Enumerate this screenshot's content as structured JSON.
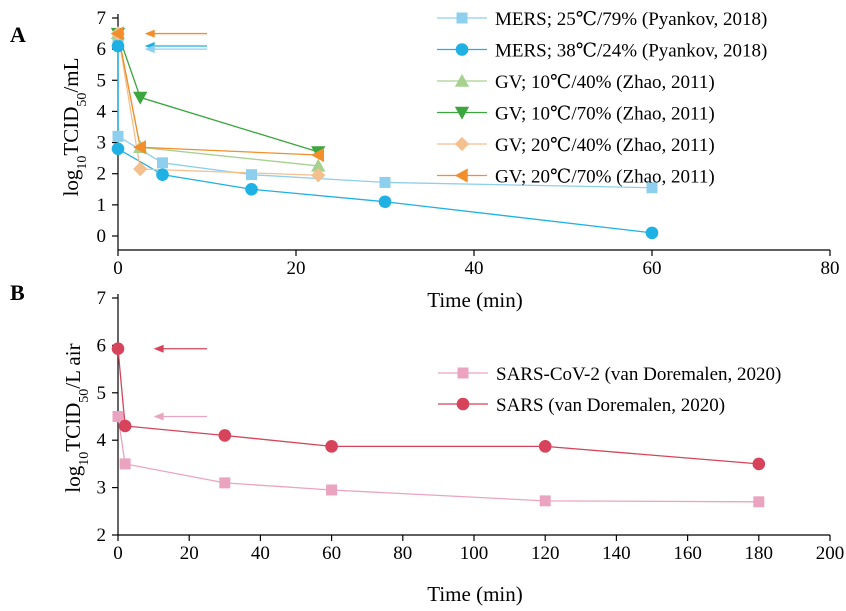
{
  "chart_data": [
    {
      "type": "line",
      "panel_label": "A",
      "xlabel": "Time (min)",
      "ylabel_base": "log",
      "ylabel_sub1": "10",
      "ylabel_mid": "TCID",
      "ylabel_sub2": "50",
      "ylabel_tail": "/mL",
      "xlim": [
        0,
        80
      ],
      "ylim": [
        0,
        7
      ],
      "xticks": [
        "0",
        "20",
        "40",
        "60",
        "80"
      ],
      "yticks": [
        "0",
        "1",
        "2",
        "3",
        "4",
        "5",
        "6",
        "7"
      ],
      "legend_position": "top-right",
      "series": [
        {
          "name": "MERS; 25℃/79% (Pyankov, 2018)",
          "color": "#8ecfee",
          "marker": "square",
          "x": [
            0,
            0,
            5,
            15,
            30,
            60
          ],
          "y": [
            6.3,
            3.2,
            2.35,
            1.97,
            1.72,
            1.55
          ]
        },
        {
          "name": "MERS; 38℃/24% (Pyankov, 2018)",
          "color": "#1fb1e4",
          "marker": "circle",
          "x": [
            0,
            0,
            5,
            15,
            30,
            60
          ],
          "y": [
            6.1,
            2.8,
            1.97,
            1.5,
            1.1,
            0.1
          ]
        },
        {
          "name": "GV; 10℃/40% (Zhao, 2011)",
          "color": "#a6d18f",
          "marker": "triangle-up",
          "x": [
            0,
            2.5,
            22.5
          ],
          "y": [
            6.5,
            2.85,
            2.25
          ]
        },
        {
          "name": "GV; 10℃/70% (Zhao, 2011)",
          "color": "#3aa63d",
          "marker": "triangle-down",
          "x": [
            0,
            2.5,
            22.5
          ],
          "y": [
            6.5,
            4.45,
            2.7
          ]
        },
        {
          "name": "GV; 20℃/40% (Zhao, 2011)",
          "color": "#f4c08e",
          "marker": "diamond",
          "x": [
            0,
            2.5,
            22.5
          ],
          "y": [
            6.5,
            2.15,
            1.95
          ]
        },
        {
          "name": "GV; 20℃/70% (Zhao, 2011)",
          "color": "#f28e2b",
          "marker": "triangle-left",
          "x": [
            0,
            2.5,
            22.5
          ],
          "y": [
            6.5,
            2.85,
            2.6
          ]
        }
      ],
      "arrows": [
        {
          "color": "#f28e2b",
          "y": 6.5,
          "x_from": 10,
          "x_to": 3
        },
        {
          "color": "#1fb1e4",
          "y": 6.1,
          "x_from": 10,
          "x_to": 3
        },
        {
          "color": "#8ecfee",
          "y": 6.0,
          "x_from": 10,
          "x_to": 3
        }
      ]
    },
    {
      "type": "line",
      "panel_label": "B",
      "xlabel": "Time (min)",
      "ylabel_base": "log",
      "ylabel_sub1": "10",
      "ylabel_mid": "TCID",
      "ylabel_sub2": "50",
      "ylabel_tail": "/L air",
      "xlim": [
        0,
        200
      ],
      "ylim": [
        2,
        7
      ],
      "xticks": [
        "0",
        "20",
        "40",
        "60",
        "80",
        "100",
        "120",
        "140",
        "160",
        "180",
        "200"
      ],
      "yticks": [
        "2",
        "3",
        "4",
        "5",
        "6",
        "7"
      ],
      "legend_position": "right",
      "series": [
        {
          "name": "SARS-CoV-2 (van Doremalen, 2020)",
          "color": "#eba4c0",
          "marker": "square",
          "x": [
            0,
            2,
            30,
            60,
            120,
            180
          ],
          "y": [
            4.5,
            3.5,
            3.1,
            2.95,
            2.72,
            2.7
          ]
        },
        {
          "name": "SARS (van Doremalen, 2020)",
          "color": "#d6435a",
          "marker": "circle",
          "x": [
            0,
            2,
            30,
            60,
            120,
            180
          ],
          "y": [
            5.93,
            4.3,
            4.1,
            3.87,
            3.87,
            3.5
          ]
        }
      ],
      "arrows": [
        {
          "color": "#d6435a",
          "y": 5.93,
          "x_from": 25,
          "x_to": 10
        },
        {
          "color": "#eba4c0",
          "y": 4.5,
          "x_from": 25,
          "x_to": 10
        }
      ]
    }
  ]
}
